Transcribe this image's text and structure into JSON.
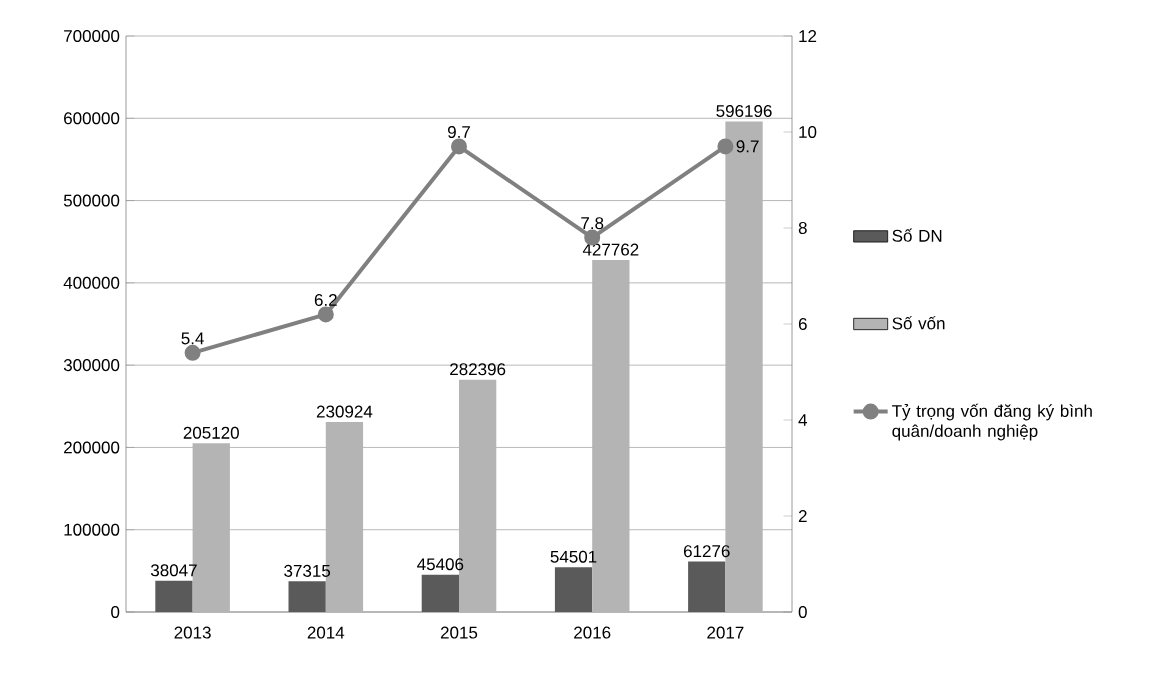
{
  "chart_data": {
    "type": "bar",
    "categories": [
      "2013",
      "2014",
      "2015",
      "2016",
      "2017"
    ],
    "series": [
      {
        "name": "Số DN",
        "color": "#5a5a5a",
        "values": [
          38047,
          37315,
          45406,
          54501,
          61276
        ]
      },
      {
        "name": "Số vốn",
        "color": "#b4b4b4",
        "values": [
          205120,
          230924,
          282396,
          427762,
          596196
        ]
      },
      {
        "name": "Tỷ trọng vốn đăng ký bình quân/doanh nghiệp",
        "type": "line",
        "axis": "y2",
        "color": "#808080",
        "values": [
          5.4,
          6.2,
          9.7,
          7.8,
          9.7
        ]
      }
    ],
    "ylim": [
      0,
      700000
    ],
    "yticks": [
      0,
      100000,
      200000,
      300000,
      400000,
      500000,
      600000,
      700000
    ],
    "y2lim": [
      0,
      12
    ],
    "y2ticks": [
      0,
      2,
      4,
      6,
      8,
      10,
      12
    ],
    "grid": "y",
    "legend": "right",
    "marker": "circle",
    "data_labels": true
  }
}
